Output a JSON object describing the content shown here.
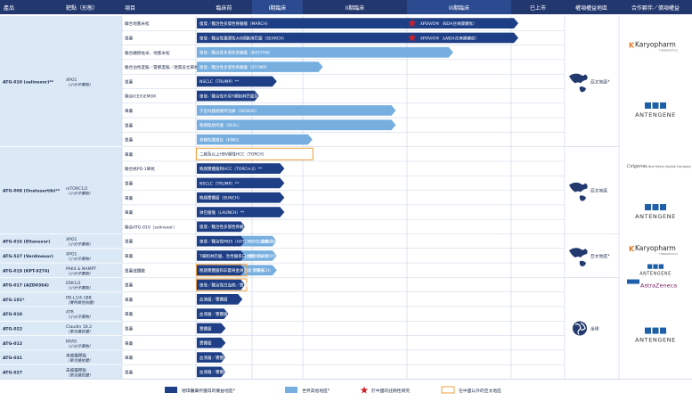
{
  "colors": {
    "header_bg": "#23376f",
    "header_alt_bg": "#2c4a8f",
    "left_col_bg": "#dbe8f6",
    "grid": "#c7d3e6",
    "dark_bar": "#1e3f86",
    "light_bar": "#76aee0",
    "star": "#d21f2b",
    "orange_outline": "#f0a040",
    "text": "#1b2a4a",
    "karyo_orange": "#e27b2a",
    "antengene_blue": "#1d5fa8",
    "az_purple": "#7b1d67",
    "bms_gray": "#555555"
  },
  "headers": {
    "drug": "產品",
    "target": "靶點（形態）",
    "indication": "項目",
    "preclinical": "臨床前",
    "phase1": "I期臨床",
    "phase2": "II期臨床",
    "phase3": "III期臨床",
    "launched": "已上市",
    "rights": "權項權益地區",
    "partner": "合作夥伴／價項權益"
  },
  "chart_data": {
    "type": "table",
    "stages": [
      "臨床前",
      "I期臨床",
      "II期臨床",
      "III期臨床",
      "已上市"
    ],
    "rows": [
      {
        "indication": "聯合地塞米松",
        "bar": "復發／難治性多發性骨髓瘤（MARCH）",
        "end": 4.05,
        "style": "dark",
        "star": true,
        "note": "XPOVIO®（NDA在美國獲批）"
      },
      {
        "indication": "單藥",
        "bar": "復發／難治性彌漫性大B細胞淋巴瘤（SEARCH）",
        "end": 4.05,
        "style": "dark",
        "star": true,
        "note": "XPOVIO®（sNDA在美國獲批）"
      },
      {
        "indication": "聯合硼替佐米、地塞米松",
        "bar": "復發／難治性多發性骨髓瘤（BOSTON）",
        "end": 3.4,
        "style": "light"
      },
      {
        "indication": "聯合泊馬度胺／雷那度胺／達雷妥尤單抗或地塞米松",
        "bar": "復發／難治性多發性骨髓瘤（STOMP）",
        "end": 2.15,
        "style": "light"
      },
      {
        "indication": "單藥",
        "bar": "NSCLC（TRUMP）**",
        "end": 1.4,
        "style": "dark"
      },
      {
        "indication": "聯合ICE/GEMOX",
        "bar": "復發／難治性外周T細胞淋巴瘤及NK/T細胞淋巴瘤（TOUCH）",
        "end": 1.05,
        "style": "dark"
      },
      {
        "indication": "單藥",
        "bar": "子宮內膜癌維持治療（SIENDO）",
        "end": 2.85,
        "style": "light"
      },
      {
        "indication": "單藥",
        "bar": "晚期脂肪肉瘤（SEAL）",
        "end": 2.85,
        "style": "light"
      },
      {
        "indication": "單藥",
        "bar": "骨髓性纖維化（KING）",
        "end": 2.05,
        "style": "light"
      },
      {
        "indication": "單藥",
        "bar": "二線及以上HBV陽性HCC（TORCH）",
        "end": 2.05,
        "style": "outline"
      },
      {
        "indication": "聯合抗PD-1單抗",
        "bar": "晚期實體瘤和HCC（TORCH-2）**",
        "end": 1.55,
        "style": "dark"
      },
      {
        "indication": "單藥",
        "bar": "NSCLC（TRUMP）**",
        "end": 1.55,
        "style": "dark"
      },
      {
        "indication": "單藥",
        "bar": "晚期實體瘤（BUNCH）",
        "end": 1.55,
        "style": "dark"
      },
      {
        "indication": "單藥",
        "bar": "淋巴瘤瘤（LAUNCH）**",
        "end": 1.55,
        "style": "dark"
      },
      {
        "indication": "聯合ATG-010（selinexor）",
        "bar": "復發／難治性多發性骨髓瘤及淋巴瘤（MATCH）",
        "end": 0.8,
        "style": "dark"
      },
      {
        "indication": "單藥",
        "bar": "復發／難治性MDS（HATCH）、白血病",
        "end": 0.8,
        "style": "dark",
        "bar2": "MDS、CMC、骨髓纖維化",
        "bar2_end": 1.4
      },
      {
        "indication": "單藥",
        "bar": "T細胞淋巴瘤、急性髓系白血病（HICARRY）（CATCH）",
        "end": 0.8,
        "style": "dark",
        "bar2": "健康受試者",
        "bar2_end": 1.4
      },
      {
        "indication": "單藥或體數",
        "bar": "晚期實體瘤和非霍奇金淋巴瘤（TEACH）",
        "end": 0.8,
        "style": "dark_outline",
        "bar2": "實體瘤",
        "bar2_end": 1.4
      },
      {
        "indication": "單藥",
        "bar": "復發／難治性白血病／實體瘤（ERASER）",
        "end": 0.8,
        "style": "dark_outline"
      },
      {
        "indication": "單藥",
        "bar": "血液瘤／實體瘤",
        "end": 0.75,
        "style": "dark"
      },
      {
        "indication": "單藥",
        "bar": "血液瘤／實體瘤",
        "end": 0.5,
        "style": "dark"
      },
      {
        "indication": "單藥",
        "bar": "實體瘤",
        "end": 0.45,
        "style": "dark"
      },
      {
        "indication": "單藥",
        "bar": "實體瘤",
        "end": 0.45,
        "style": "dark"
      },
      {
        "indication": "單藥",
        "bar": "血液瘤／實體瘤",
        "end": 0.45,
        "style": "dark"
      },
      {
        "indication": "單藥",
        "bar": "血液瘤／實體瘤",
        "end": 0.45,
        "style": "dark"
      }
    ],
    "drugs": [
      {
        "name": "ATG-010 (selinexor)**",
        "target": "XPO1（小分子藥物）",
        "row_start": 0,
        "row_count": 9
      },
      {
        "name": "ATG-008 (Onatasertib)**",
        "target": "mTORC1/2（小分子藥物）",
        "row_start": 9,
        "row_count": 6
      },
      {
        "name": "ATG-016 (Eltanexor)",
        "target": "XPO1（小分子藥物）",
        "row_start": 15,
        "row_count": 1
      },
      {
        "name": "ATG-527 (Verdinexor)",
        "target": "XPO1（小分子藥物）",
        "row_start": 16,
        "row_count": 1
      },
      {
        "name": "ATG-019 (KPT-9274)",
        "target": "PAK4 & NAMPT（小分子藥物）",
        "row_start": 17,
        "row_count": 1
      },
      {
        "name": "ATG-017 (AZD0364)",
        "target": "ERK1/2（小分子藥物）",
        "row_start": 18,
        "row_count": 1
      },
      {
        "name": "ATG-101*",
        "target": "PD-L1/4-1BB（雙特異性抗體）",
        "row_start": 19,
        "row_count": 1
      },
      {
        "name": "ATG-018",
        "target": "ATR（小分子藥物）",
        "row_start": 20,
        "row_count": 1
      },
      {
        "name": "ATG-022",
        "target": "Claudin 18.2（單克隆抗體）",
        "row_start": 21,
        "row_count": 1
      },
      {
        "name": "ATG-012",
        "target": "KRAS（小分子藥物）",
        "row_start": 22,
        "row_count": 1
      },
      {
        "name": "ATG-031",
        "target": "未披露靶點（單克隆抗體）",
        "row_start": 23,
        "row_count": 1
      },
      {
        "name": "ATG-027",
        "target": "未披露靶點（單克隆抗體）",
        "row_start": 24,
        "row_count": 1
      }
    ],
    "rights_groups": [
      {
        "label": "亞太地區*",
        "icon": "asia-pacific-map-icon",
        "row_start": 0,
        "row_count": 9
      },
      {
        "label": "亞太地區",
        "icon": "asia-pacific-map-icon",
        "row_start": 9,
        "row_count": 6
      },
      {
        "label": "亞太地區*",
        "icon": "asia-pacific-map-icon",
        "row_start": 15,
        "row_count": 3
      },
      {
        "label": "全球",
        "icon": "globe-icon",
        "row_start": 18,
        "row_count": 7
      }
    ],
    "partners": [
      {
        "logo": "karyopharm",
        "text": "Karyopharm",
        "sub": "THERAPEUTICS",
        "row_start": 0,
        "row_count": 4
      },
      {
        "logo": "antengene",
        "text": "ANTENGENE",
        "row_start": 4,
        "row_count": 5
      },
      {
        "logo": "celgene-bms",
        "text": "Celgene",
        "sub": "Bristol Myers Squibb Company",
        "row_start": 9,
        "row_count": 3
      },
      {
        "logo": "antengene",
        "text": "ANTENGENE",
        "row_start": 12,
        "row_count": 3
      },
      {
        "logo": "karyopharm",
        "text": "Karyopharm",
        "sub": "THERAPEUTICS",
        "row_start": 15,
        "row_count": 2
      },
      {
        "logo": "antengene-small",
        "text": "ANTENGENE",
        "row_start": 17,
        "row_count": 1
      },
      {
        "logo": "astrazeneca",
        "text": "AstraZeneca",
        "row_start": 18,
        "row_count": 1
      },
      {
        "logo": "antengene",
        "text": "ANTENGENE",
        "row_start": 19,
        "row_count": 6
      }
    ]
  },
  "legend": [
    {
      "kind": "dark",
      "label": "德琪醫藥所獲得的權益地區*"
    },
    {
      "kind": "light",
      "label": "世界其他地區*"
    },
    {
      "kind": "star",
      "label": "於中國的註冊性研究"
    },
    {
      "kind": "outline",
      "label": "在中國以外的亞太地區"
    }
  ]
}
